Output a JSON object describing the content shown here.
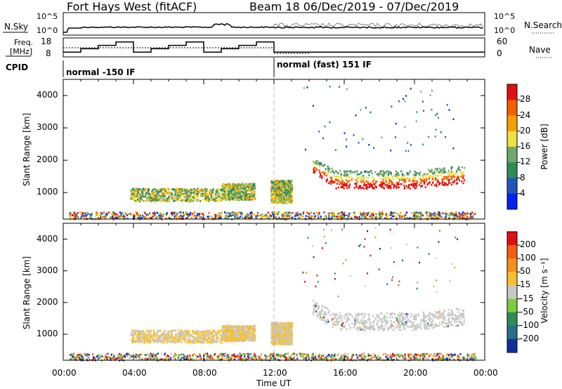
{
  "header": {
    "radar": "Fort Hays West (fitACF)",
    "beam_info": "Beam 18  06/Dec/2019 - 07/Dec/2019"
  },
  "panels": {
    "nsky_label": "N.Sky",
    "nsky_ticks": [
      "10^5",
      "10^0"
    ],
    "nsearch_label": "N.Search",
    "nsearch_ticks": [
      "10^5",
      "10^0"
    ],
    "freq_label_1": "Freq.",
    "freq_label_2": "[MHz]",
    "freq_ticks": [
      "18",
      "8"
    ],
    "nave_label": "Nave",
    "nave_ticks": [
      "60",
      "0"
    ],
    "cpid_label": "CPID",
    "cpid_1": "normal -150 IF",
    "cpid_2": "normal (fast) 151 IF"
  },
  "power_colorbar": {
    "label": "Power [dB]",
    "ticks": [
      "28",
      "24",
      "20",
      "16",
      "12",
      "8",
      "4"
    ],
    "colors": [
      "#0022ee",
      "#2255bb",
      "#2e8b57",
      "#6fa86f",
      "#f0e040",
      "#f5a000",
      "#f06000",
      "#e01010"
    ]
  },
  "velocity_colorbar": {
    "label": "Velocity [m s⁻¹]",
    "ticks": [
      "200",
      "100",
      "50",
      "15",
      "-15",
      "-50",
      "-100",
      "-200"
    ],
    "colors": [
      "#1030a0",
      "#2a6e8e",
      "#2e8b57",
      "#7ccc40",
      "#c8c8c8",
      "#f5c030",
      "#f59020",
      "#f06010",
      "#e01010"
    ]
  },
  "chart_data": {
    "type": "heatmap",
    "xlabel": "Time UT",
    "ylabel": "Slant Range [km]",
    "x_ticks": [
      "00:00",
      "04:00",
      "08:00",
      "12:00",
      "16:00",
      "20:00",
      "00:00"
    ],
    "xlim_hours": [
      0,
      24
    ],
    "ylim_km": [
      180,
      4500
    ],
    "y_ticks": [
      1000,
      2000,
      3000,
      4000
    ],
    "frequency_steps_mhz": [
      {
        "t0": 0.0,
        "t1": 1.0,
        "f": 10
      },
      {
        "t0": 1.0,
        "t1": 2.0,
        "f": 12
      },
      {
        "t0": 2.0,
        "t1": 3.0,
        "f": 14
      },
      {
        "t0": 3.0,
        "t1": 4.0,
        "f": 16
      },
      {
        "t0": 4.0,
        "t1": 5.0,
        "f": 10
      },
      {
        "t0": 5.0,
        "t1": 6.0,
        "f": 12
      },
      {
        "t0": 6.0,
        "t1": 7.0,
        "f": 14
      },
      {
        "t0": 7.0,
        "t1": 8.0,
        "f": 16
      },
      {
        "t0": 8.0,
        "t1": 9.0,
        "f": 10
      },
      {
        "t0": 9.0,
        "t1": 10.0,
        "f": 12
      },
      {
        "t0": 10.0,
        "t1": 11.0,
        "f": 14
      },
      {
        "t0": 11.0,
        "t1": 12.0,
        "f": 16
      },
      {
        "t0": 12.0,
        "t1": 24.0,
        "f": 10
      }
    ],
    "cpid_change_hour": 12.0,
    "echo_regions": [
      {
        "t0": 0.3,
        "t1": 23.5,
        "r0": 200,
        "r1": 420,
        "power": "mixed",
        "velocity": "low"
      },
      {
        "t0": 3.8,
        "t1": 9.0,
        "r0": 750,
        "r1": 1150,
        "power": "20",
        "velocity": "-30"
      },
      {
        "t0": 9.0,
        "t1": 10.9,
        "r0": 800,
        "r1": 1300,
        "power": "16",
        "velocity": "-20"
      },
      {
        "t0": 11.8,
        "t1": 13.0,
        "r0": 700,
        "r1": 1400,
        "power": "12",
        "velocity": "-20"
      },
      {
        "t0": 14.2,
        "t1": 22.8,
        "r0": 1100,
        "r1": 1900,
        "power": "26",
        "velocity": "0"
      }
    ]
  }
}
